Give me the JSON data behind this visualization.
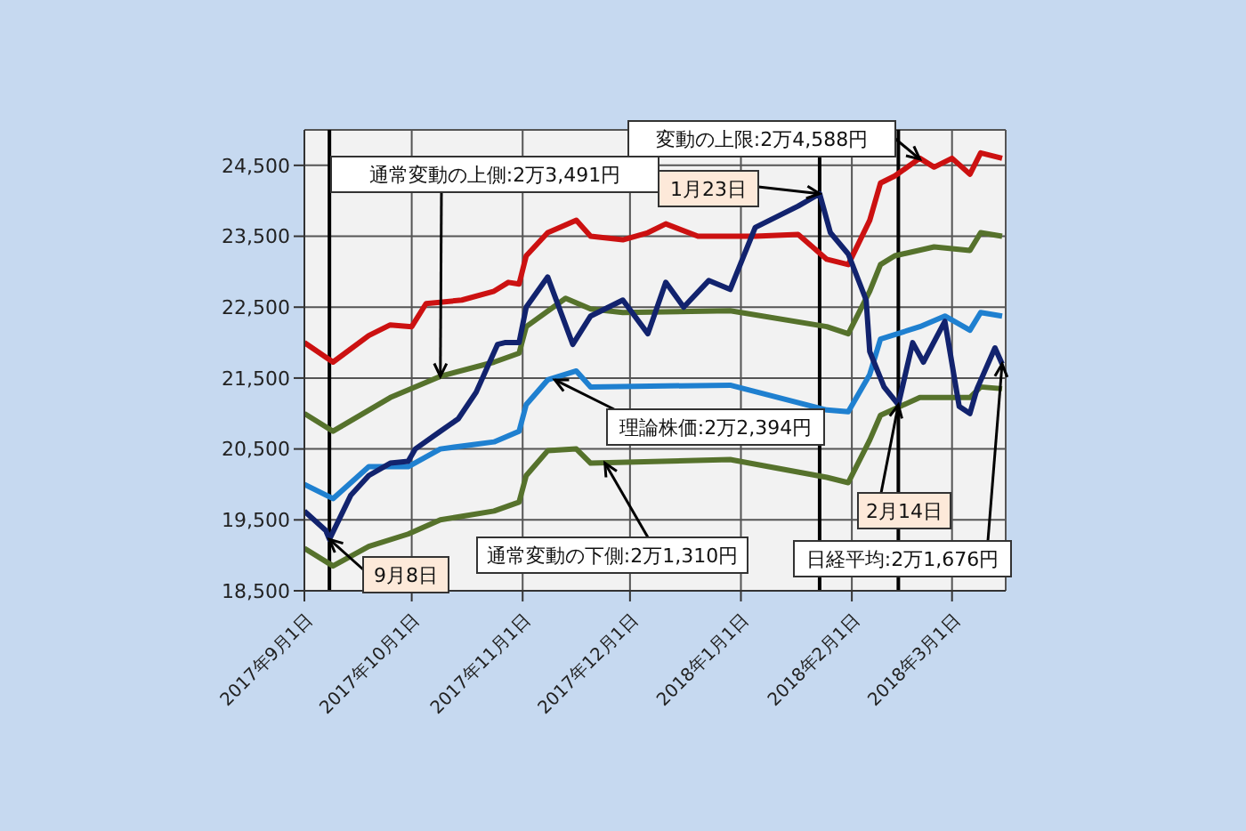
{
  "chart_data": {
    "type": "line",
    "xlim": [
      "2017-09-01",
      "2018-03-16"
    ],
    "ylim": [
      18500,
      25000
    ],
    "xticks": [
      {
        "value": "2017-09-01",
        "label": "2017年9月1日"
      },
      {
        "value": "2017-10-01",
        "label": "2017年10月1日"
      },
      {
        "value": "2017-11-01",
        "label": "2017年11月1日"
      },
      {
        "value": "2017-12-01",
        "label": "2017年12月1日"
      },
      {
        "value": "2018-01-01",
        "label": "2018年1月1日"
      },
      {
        "value": "2018-02-01",
        "label": "2018年2月1日"
      },
      {
        "value": "2018-03-01",
        "label": "2018年3月1日"
      }
    ],
    "yticks": [
      {
        "value": 18500,
        "label": "18,500"
      },
      {
        "value": 19500,
        "label": "19,500"
      },
      {
        "value": 20500,
        "label": "20,500"
      },
      {
        "value": 21500,
        "label": "21,500"
      },
      {
        "value": 22500,
        "label": "22,500"
      },
      {
        "value": 23500,
        "label": "23,500"
      },
      {
        "value": 24500,
        "label": "24,500"
      }
    ],
    "grid": true,
    "marker": "none",
    "line_style": "solid",
    "series": [
      {
        "color": "#cc1111",
        "x": [
          "2017-09-01",
          "2017-09-09",
          "2017-09-19",
          "2017-09-25",
          "2017-10-01",
          "2017-10-05",
          "2017-10-15",
          "2017-10-24",
          "2017-10-28",
          "2017-10-31",
          "2017-11-02",
          "2017-11-08",
          "2017-11-16",
          "2017-11-20",
          "2017-11-29",
          "2017-12-06",
          "2017-12-11",
          "2017-12-20",
          "2018-01-05",
          "2018-01-17",
          "2018-01-25",
          "2018-01-31",
          "2018-02-06",
          "2018-02-09",
          "2018-02-13",
          "2018-02-20",
          "2018-02-24",
          "2018-03-01",
          "2018-03-06",
          "2018-03-09",
          "2018-03-15"
        ],
        "values": [
          22000,
          21725,
          22100,
          22250,
          22225,
          22550,
          22600,
          22725,
          22850,
          22825,
          23225,
          23550,
          23725,
          23500,
          23450,
          23550,
          23675,
          23500,
          23500,
          23525,
          23175,
          23100,
          23725,
          24250,
          24350,
          24600,
          24475,
          24600,
          24375,
          24675,
          24600
        ]
      },
      {
        "color": "#56722c",
        "x": [
          "2017-09-01",
          "2017-09-09",
          "2017-09-25",
          "2017-10-09",
          "2017-10-24",
          "2017-10-31",
          "2017-11-02",
          "2017-11-13",
          "2017-11-20",
          "2017-11-29",
          "2017-12-29",
          "2018-01-25",
          "2018-01-31",
          "2018-02-06",
          "2018-02-09",
          "2018-02-13",
          "2018-02-24",
          "2018-03-06",
          "2018-03-09",
          "2018-03-15"
        ],
        "values": [
          21000,
          20750,
          21225,
          21525,
          21725,
          21850,
          22225,
          22625,
          22475,
          22425,
          22450,
          22225,
          22125,
          22725,
          23100,
          23225,
          23350,
          23300,
          23550,
          23500
        ]
      },
      {
        "color": "#1f80d0",
        "x": [
          "2017-09-01",
          "2017-09-09",
          "2017-09-19",
          "2017-09-30",
          "2017-10-09",
          "2017-10-24",
          "2017-10-31",
          "2017-11-02",
          "2017-11-08",
          "2017-11-16",
          "2017-11-20",
          "2017-12-29",
          "2018-01-25",
          "2018-01-31",
          "2018-02-06",
          "2018-02-09",
          "2018-02-20",
          "2018-02-27",
          "2018-03-06",
          "2018-03-09",
          "2018-03-15"
        ],
        "values": [
          20000,
          19800,
          20250,
          20250,
          20500,
          20600,
          20750,
          21125,
          21475,
          21600,
          21375,
          21400,
          21050,
          21025,
          21550,
          22050,
          22225,
          22375,
          22175,
          22425,
          22375
        ]
      },
      {
        "color": "#56722c",
        "x": [
          "2017-09-01",
          "2017-09-09",
          "2017-09-19",
          "2017-09-30",
          "2017-10-09",
          "2017-10-24",
          "2017-10-31",
          "2017-11-02",
          "2017-11-08",
          "2017-11-16",
          "2017-11-20",
          "2017-12-29",
          "2018-01-25",
          "2018-01-31",
          "2018-02-06",
          "2018-02-09",
          "2018-02-20",
          "2018-03-06",
          "2018-03-09",
          "2018-03-15"
        ],
        "values": [
          19100,
          18850,
          19125,
          19300,
          19500,
          19625,
          19750,
          20125,
          20475,
          20500,
          20300,
          20350,
          20100,
          20025,
          20625,
          20975,
          21225,
          21225,
          21375,
          21350
        ]
      },
      {
        "color": "#12236e",
        "x": [
          "2017-09-01",
          "2017-09-07",
          "2017-09-08",
          "2017-09-14",
          "2017-09-19",
          "2017-09-25",
          "2017-09-30",
          "2017-10-02",
          "2017-10-09",
          "2017-10-14",
          "2017-10-19",
          "2017-10-25",
          "2017-10-27",
          "2017-10-31",
          "2017-11-02",
          "2017-11-08",
          "2017-11-15",
          "2017-11-20",
          "2017-11-29",
          "2017-12-06",
          "2017-12-11",
          "2017-12-16",
          "2017-12-23",
          "2017-12-29",
          "2018-01-05",
          "2018-01-12",
          "2018-01-17",
          "2018-01-23",
          "2018-01-26",
          "2018-01-31",
          "2018-02-05",
          "2018-02-06",
          "2018-02-10",
          "2018-02-14",
          "2018-02-18",
          "2018-02-21",
          "2018-02-27",
          "2018-03-03",
          "2018-03-06",
          "2018-03-08",
          "2018-03-13",
          "2018-03-15"
        ],
        "values": [
          19625,
          19350,
          19225,
          19850,
          20125,
          20300,
          20325,
          20500,
          20750,
          20925,
          21300,
          21975,
          22000,
          22000,
          22500,
          22925,
          21975,
          22375,
          22600,
          22125,
          22850,
          22500,
          22875,
          22750,
          23625,
          23800,
          23925,
          24100,
          23550,
          23250,
          22600,
          21875,
          21375,
          21125,
          22000,
          21725,
          22300,
          21100,
          21000,
          21350,
          21925,
          21700
        ]
      }
    ],
    "ref_lines": [
      {
        "axis": "x",
        "value": "2017-09-08",
        "color": "#000000"
      },
      {
        "axis": "x",
        "value": "2018-01-23",
        "color": "#000000"
      },
      {
        "axis": "x",
        "value": "2018-02-14",
        "color": "#000000"
      }
    ],
    "annotations": [
      {
        "text": "通常変動の上側:2万3,491円",
        "x": "2017-10-09",
        "y": 21525
      },
      {
        "text": "変動の上限:2万4,588円",
        "x": "2018-02-20",
        "y": 24588
      },
      {
        "text": "1月23日",
        "x": "2018-01-23",
        "y": 24100
      },
      {
        "text": "理論株価:2万2,394円",
        "x": "2017-11-10",
        "y": 21475
      },
      {
        "text": "通常変動の下側:2万1,310円",
        "x": "2017-11-24",
        "y": 20300
      },
      {
        "text": "9月8日",
        "x": "2017-09-08",
        "y": 19225
      },
      {
        "text": "2月14日",
        "x": "2018-02-14",
        "y": 21125
      },
      {
        "text": "日経平均:2万1,676円",
        "x": "2018-03-15",
        "y": 21700
      }
    ]
  }
}
